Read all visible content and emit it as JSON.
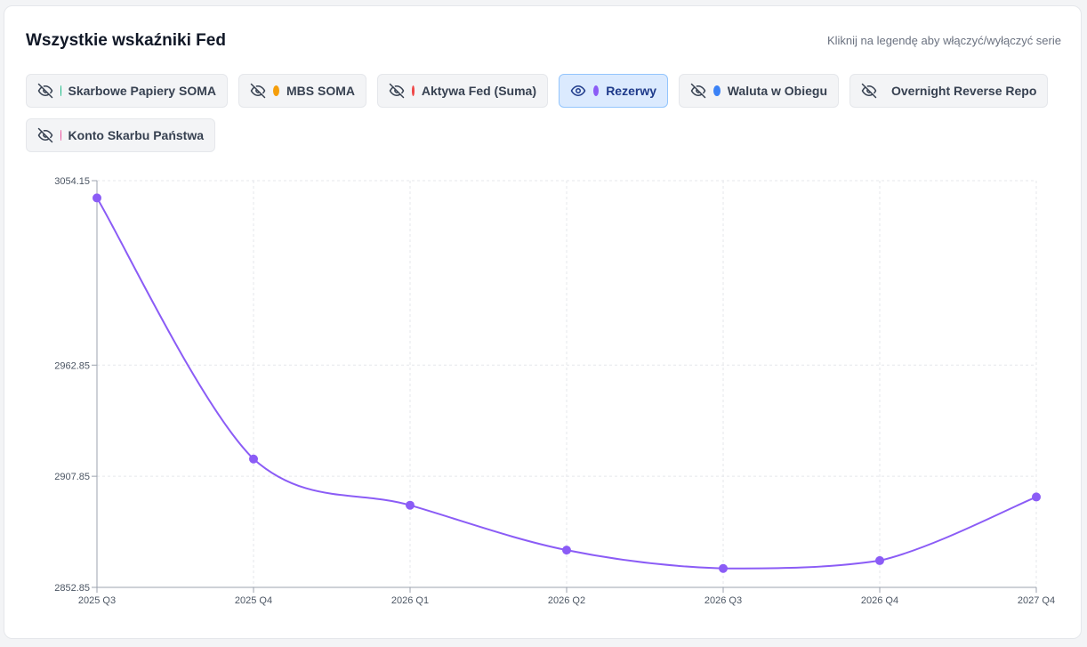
{
  "header": {
    "title": "Wszystkie wskaźniki Fed",
    "hint": "Kliknij na legendę aby włączyć/wyłączyć serie"
  },
  "legend": [
    {
      "label": "Skarbowe Papiery SOMA",
      "color": "#10b981",
      "active": false,
      "icon": "eye-off-icon"
    },
    {
      "label": "MBS SOMA",
      "color": "#f59e0b",
      "active": false,
      "icon": "eye-off-icon"
    },
    {
      "label": "Aktywa Fed (Suma)",
      "color": "#ef4444",
      "active": false,
      "icon": "eye-off-icon"
    },
    {
      "label": "Rezerwy",
      "color": "#8b5cf6",
      "active": true,
      "icon": "eye-icon"
    },
    {
      "label": "Waluta w Obiegu",
      "color": "#3b82f6",
      "active": false,
      "icon": "eye-off-icon"
    },
    {
      "label": "Overnight Reverse Repo",
      "color": "#f97316",
      "active": false,
      "icon": "eye-off-icon"
    },
    {
      "label": "Konto Skarbu Państwa",
      "color": "#ec4899",
      "active": false,
      "icon": "eye-off-icon"
    }
  ],
  "chart_data": {
    "type": "line",
    "title": "",
    "xlabel": "",
    "ylabel": "",
    "categories": [
      "2025 Q3",
      "2025 Q4",
      "2026 Q1",
      "2026 Q2",
      "2026 Q3",
      "2026 Q4",
      "2027 Q4"
    ],
    "yticks": [
      "3054.15",
      "2962.85",
      "2907.85",
      "2852.85"
    ],
    "ylim": [
      2852.85,
      3054.15
    ],
    "grid": true,
    "series": [
      {
        "name": "Rezerwy",
        "color": "#8b5cf6",
        "values": [
          3045.6,
          2916.4,
          2893.5,
          2871.3,
          2862.2,
          2866.1,
          2897.6
        ]
      }
    ]
  }
}
